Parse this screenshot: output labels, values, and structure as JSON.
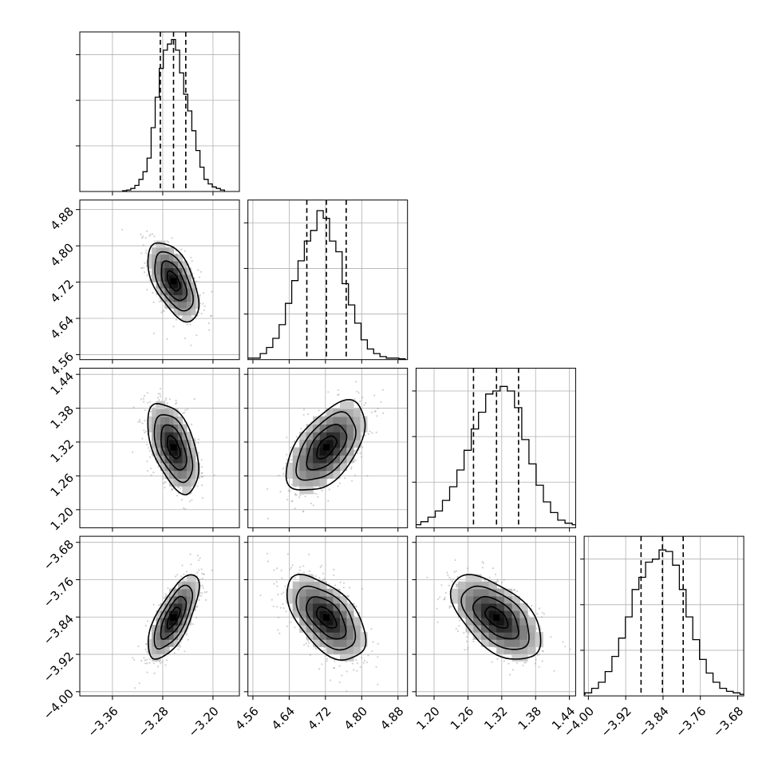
{
  "chart_data": {
    "type": "corner",
    "parameters": [
      {
        "name": "",
        "range": [
          -3.412,
          -3.158
        ],
        "ticks": [
          -3.36,
          -3.28,
          -3.2
        ],
        "tick_labels": [
          "−3.36",
          "−3.28",
          "−3.20"
        ],
        "median": -3.2628,
        "q16": -3.2838,
        "q84": -3.2433,
        "hist": [
          0.005,
          0.01,
          0.02,
          0.04,
          0.08,
          0.13,
          0.22,
          0.42,
          0.62,
          0.81,
          0.93,
          0.97,
          1.0,
          0.93,
          0.78,
          0.64,
          0.53,
          0.4,
          0.27,
          0.16,
          0.08,
          0.05,
          0.03,
          0.02,
          0.01
        ]
      },
      {
        "name": "",
        "range": [
          4.549,
          4.901
        ],
        "ticks": [
          4.56,
          4.64,
          4.72,
          4.8,
          4.88
        ],
        "tick_labels": [
          "4.56",
          "4.64",
          "4.72",
          "4.80",
          "4.88"
        ],
        "median": 4.7221,
        "q16": 4.6789,
        "q84": 4.7658,
        "hist": [
          0.01,
          0.01,
          0.04,
          0.08,
          0.14,
          0.23,
          0.37,
          0.52,
          0.65,
          0.78,
          0.85,
          0.98,
          0.93,
          0.78,
          0.71,
          0.5,
          0.36,
          0.24,
          0.13,
          0.07,
          0.04,
          0.02,
          0.01,
          0.01,
          0.005
        ]
      },
      {
        "name": "",
        "range": [
          1.168,
          1.451
        ],
        "ticks": [
          1.2,
          1.26,
          1.32,
          1.38,
          1.44
        ],
        "tick_labels": [
          "1.20",
          "1.26",
          "1.32",
          "1.38",
          "1.44"
        ],
        "median": 1.3107,
        "q16": 1.2699,
        "q84": 1.3498,
        "hist": [
          0.01,
          0.02,
          0.04,
          0.07,
          0.11,
          0.18,
          0.27,
          0.38,
          0.51,
          0.65,
          0.76,
          0.88,
          0.9,
          0.93,
          0.9,
          0.79,
          0.58,
          0.42,
          0.28,
          0.17,
          0.1,
          0.05,
          0.03,
          0.02,
          0.01
        ]
      },
      {
        "name": "",
        "range": [
          -4.009,
          -3.667
        ],
        "ticks": [
          -4.0,
          -3.92,
          -3.84,
          -3.76,
          -3.68
        ],
        "tick_labels": [
          "−4.00",
          "−3.92",
          "−3.84",
          "−3.76",
          "−3.68"
        ],
        "median": -3.8412,
        "q16": -3.8871,
        "q84": -3.7968,
        "hist": [
          0.01,
          0.02,
          0.05,
          0.09,
          0.16,
          0.26,
          0.38,
          0.52,
          0.7,
          0.78,
          0.88,
          0.9,
          0.96,
          0.95,
          0.86,
          0.7,
          0.52,
          0.37,
          0.24,
          0.15,
          0.09,
          0.05,
          0.03,
          0.02,
          0.01
        ]
      }
    ],
    "correlations": {
      "1-0": -0.55,
      "2-0": -0.5,
      "2-1": 0.55,
      "3-0": 0.7,
      "3-1": -0.55,
      "3-2": -0.55
    },
    "contour_levels": [
      0.118,
      0.393,
      0.675,
      0.865
    ],
    "quantiles": [
      0.16,
      0.5,
      0.84
    ],
    "grid": true,
    "colors": {
      "line": "#000000",
      "points": "#9a9a9a",
      "grid": "#b0b0b0"
    }
  }
}
